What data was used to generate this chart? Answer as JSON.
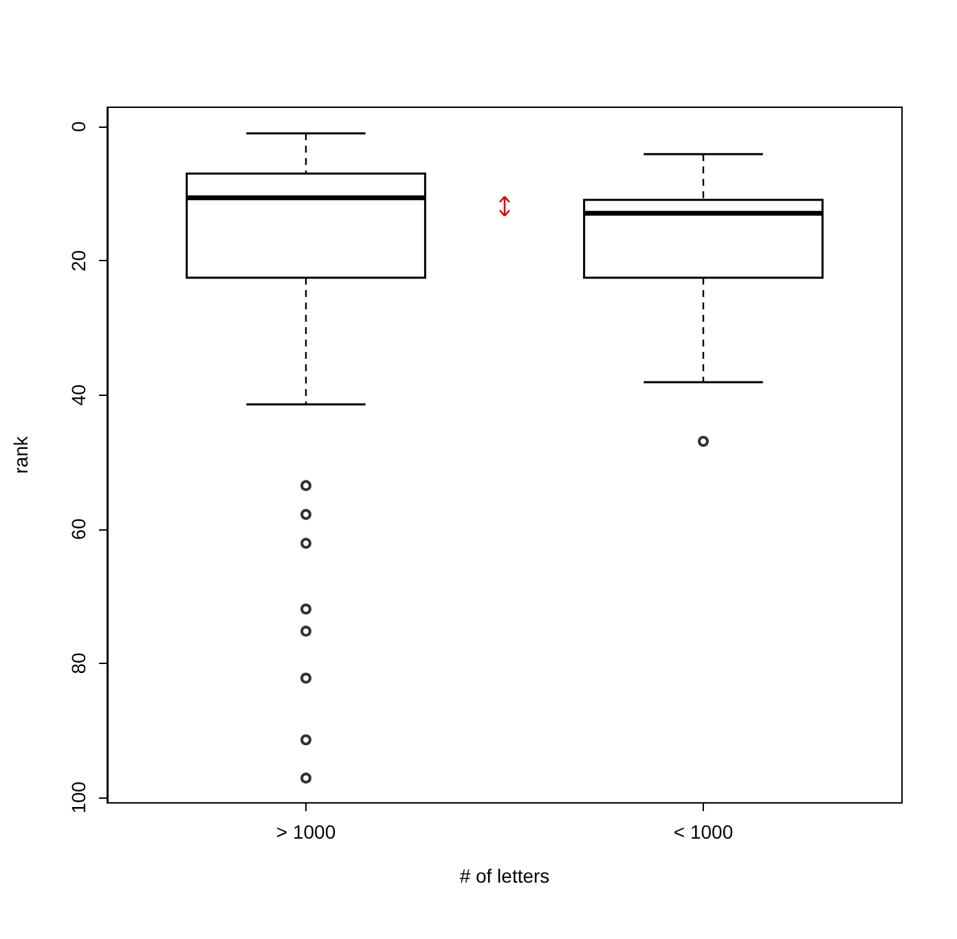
{
  "chart_data": {
    "type": "box",
    "xlabel": "# of letters",
    "ylabel": "rank",
    "categories": [
      "> 1000",
      "< 1000"
    ],
    "boxes": [
      {
        "low": 1.0,
        "q1": 7.0,
        "median": 10.6,
        "q3": 22.5,
        "high": 41.4,
        "outliers": [
          53.5,
          57.8,
          62.1,
          71.9,
          75.2,
          82.2,
          91.4,
          97.1
        ]
      },
      {
        "low": 4.1,
        "q1": 10.9,
        "median": 12.9,
        "q3": 22.5,
        "high": 38.1,
        "outliers": [
          46.9
        ]
      }
    ],
    "color": "#000000",
    "ylim": [
      100.8,
      -2.9
    ],
    "yticks": [
      0,
      20,
      40,
      60,
      80,
      100
    ],
    "grid": false
  }
}
